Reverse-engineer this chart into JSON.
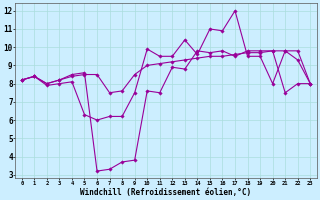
{
  "xlabel": "Windchill (Refroidissement éolien,°C)",
  "background_color": "#cceeff",
  "line_color": "#990099",
  "grid_color": "#aadddd",
  "xlim": [
    -0.5,
    23.5
  ],
  "ylim": [
    2.8,
    12.4
  ],
  "xticks": [
    0,
    1,
    2,
    3,
    4,
    5,
    6,
    7,
    8,
    9,
    10,
    11,
    12,
    13,
    14,
    15,
    16,
    17,
    18,
    19,
    20,
    21,
    22,
    23
  ],
  "yticks": [
    3,
    4,
    5,
    6,
    7,
    8,
    9,
    10,
    11,
    12
  ],
  "line1_y": [
    8.2,
    8.4,
    7.9,
    8.0,
    8.1,
    6.3,
    6.0,
    6.2,
    6.2,
    7.5,
    9.9,
    9.5,
    9.5,
    10.4,
    9.6,
    11.0,
    10.9,
    12.0,
    9.5,
    9.5,
    8.0,
    9.8,
    9.3,
    8.0
  ],
  "line2_y": [
    8.2,
    8.4,
    8.0,
    8.2,
    8.5,
    8.6,
    3.2,
    3.3,
    3.7,
    3.8,
    7.6,
    7.5,
    8.9,
    8.8,
    9.8,
    9.7,
    9.8,
    9.5,
    9.8,
    9.8,
    9.8,
    7.5,
    8.0,
    8.0
  ],
  "line3_y": [
    8.2,
    8.4,
    8.0,
    8.2,
    8.4,
    8.5,
    8.5,
    7.5,
    7.6,
    8.5,
    9.0,
    9.1,
    9.2,
    9.3,
    9.4,
    9.5,
    9.5,
    9.6,
    9.7,
    9.7,
    9.8,
    9.8,
    9.8,
    8.0
  ]
}
